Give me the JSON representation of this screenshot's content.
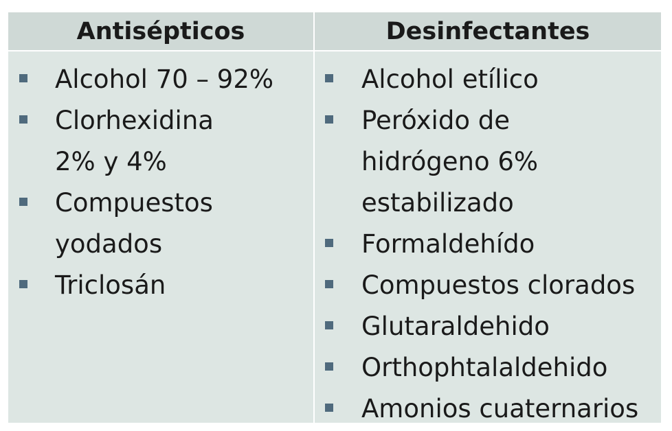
{
  "columns": [
    {
      "header": "Antisépticos",
      "items": [
        "Alcohol 70 – 92%",
        "Clorhexidina 2% y 4%",
        "Compuestos yodados",
        "Triclosán"
      ]
    },
    {
      "header": "Desinfectantes",
      "items": [
        "Alcohol etílico",
        "Peróxido de hidrógeno 6% estabilizado",
        "Formaldehído",
        "Compuestos clorados",
        "Glutaraldehido",
        "Orthophtalaldehido",
        "Amonios cuaternarios"
      ]
    }
  ],
  "colors": {
    "header_bg": "#cfd9d6",
    "body_bg": "#dde6e3",
    "bullet": "#4f6a7d",
    "text": "#1a1a1a"
  },
  "icons": {
    "bullet": "square-bullet-icon"
  }
}
